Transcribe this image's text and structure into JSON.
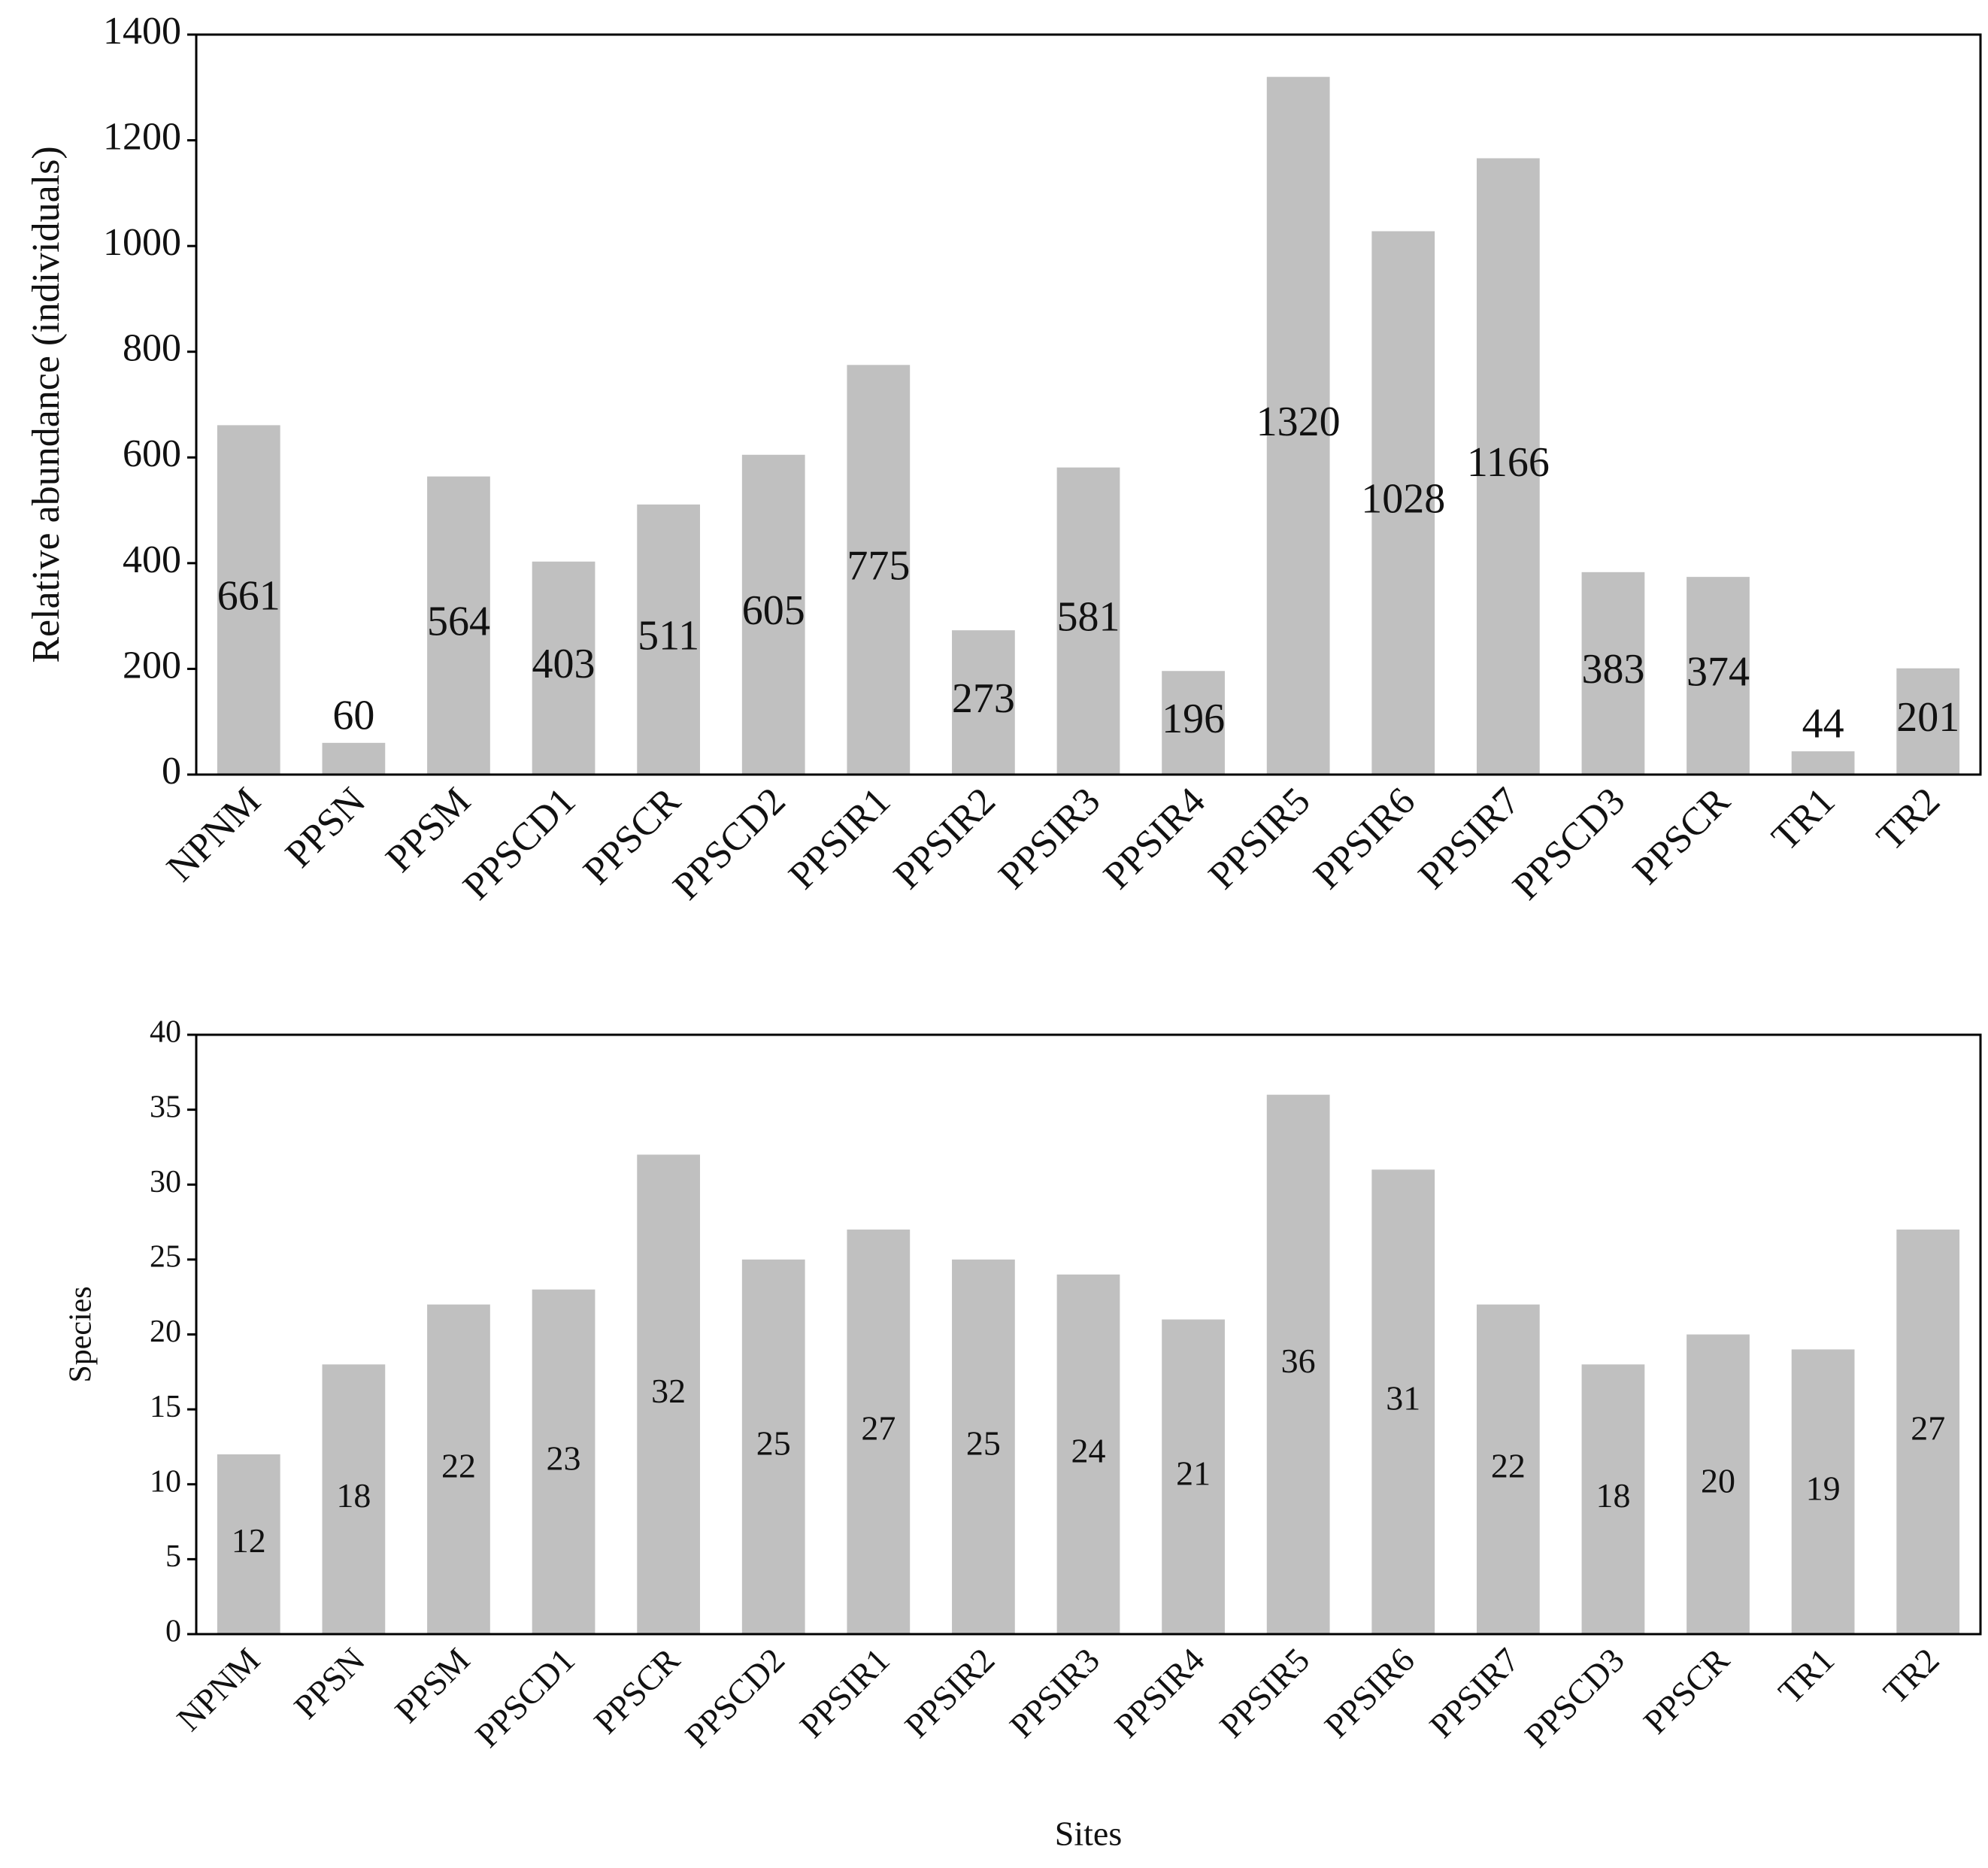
{
  "chart_data": [
    {
      "type": "bar",
      "y_label": "Relative abundance (individuals)",
      "categories": [
        "NPNM",
        "PPSN",
        "PPSM",
        "PPSCD1",
        "PPSCR",
        "PPSCD2",
        "PPSIR1",
        "PPSIR2",
        "PPSIR3",
        "PPSIR4",
        "PPSIR5",
        "PPSIR6",
        "PPSIR7",
        "PPSCD3",
        "PPSCR",
        "TR1",
        "TR2"
      ],
      "values": [
        661,
        60,
        564,
        403,
        511,
        605,
        775,
        273,
        581,
        196,
        1320,
        1028,
        1166,
        383,
        374,
        44,
        201
      ],
      "color": "#c0c0c0",
      "ylim": [
        0,
        1400
      ],
      "yticks": [
        0,
        200,
        400,
        600,
        800,
        1000,
        1200,
        1400
      ]
    },
    {
      "type": "bar",
      "y_label": "Species",
      "x_label": "Sites",
      "categories": [
        "NPNM",
        "PPSN",
        "PPSM",
        "PPSCD1",
        "PPSCR",
        "PPSCD2",
        "PPSIR1",
        "PPSIR2",
        "PPSIR3",
        "PPSIR4",
        "PPSIR5",
        "PPSIR6",
        "PPSIR7",
        "PPSCD3",
        "PPSCR",
        "TR1",
        "TR2"
      ],
      "values": [
        12,
        18,
        22,
        23,
        32,
        25,
        27,
        25,
        24,
        21,
        36,
        31,
        22,
        18,
        20,
        19,
        27
      ],
      "color": "#c0c0c0",
      "ylim": [
        0,
        40
      ],
      "yticks": [
        0,
        5,
        10,
        15,
        20,
        25,
        30,
        35,
        40
      ]
    }
  ]
}
